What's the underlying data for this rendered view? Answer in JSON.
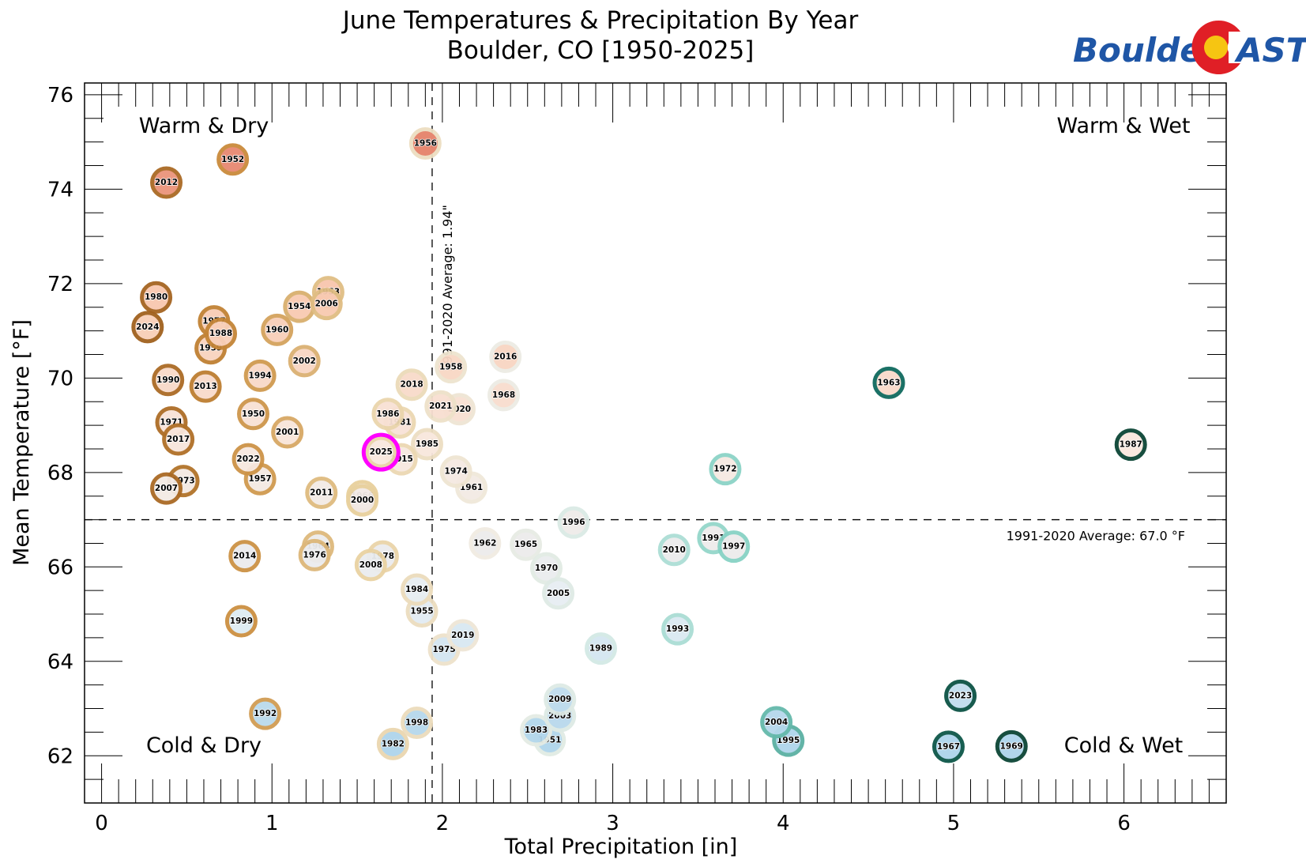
{
  "logo": {
    "left_text": "Boulder",
    "right_text": "AST",
    "colors": {
      "blue": "#1f56a6",
      "red": "#e01f26",
      "yellow": "#f6c512"
    }
  },
  "chart_data": {
    "type": "scatter",
    "title": "June Temperatures & Precipitation By Year",
    "subtitle": "Boulder, CO [1950-2025]",
    "xlabel": "Total Precipitation [in]",
    "ylabel": "Mean Temperature [°F]",
    "xlim": [
      -0.1,
      6.6
    ],
    "ylim": [
      61.0,
      76.25
    ],
    "x_ticks": [
      0,
      1,
      2,
      3,
      4,
      5,
      6
    ],
    "x_tick_labels": [
      "0",
      "1",
      "2",
      "3",
      "4",
      "5",
      "6"
    ],
    "x_minor_step": 0.1,
    "y_ticks": [
      62,
      64,
      66,
      68,
      70,
      72,
      74,
      76
    ],
    "y_tick_labels": [
      "62",
      "64",
      "66",
      "68",
      "70",
      "72",
      "74",
      "76"
    ],
    "y_minor_step": 0.5,
    "grid": false,
    "reference_lines": {
      "precip_average": {
        "value": 1.94,
        "label": "1991-2020 Average: 1.94\""
      },
      "temp_average": {
        "value": 67.0,
        "label": "1991-2020 Average: 67.0 °F"
      }
    },
    "quadrant_labels": {
      "top_left": "Warm & Dry",
      "top_right": "Warm & Wet",
      "bottom_left": "Cold & Dry",
      "bottom_right": "Cold & Wet"
    },
    "highlight": {
      "year": "2025",
      "color": "#ff00ff"
    },
    "color_scales": {
      "ring_by_precip": [
        "#8b4a0e",
        "#c98a3a",
        "#e8cf9c",
        "#f1ece4",
        "#cfe9e5",
        "#7fcfc1",
        "#0f6e63",
        "#0b4535"
      ],
      "fill_by_temp": [
        "#a9d2ea",
        "#e6eef4",
        "#f8e8df",
        "#f8c8ae",
        "#e58169"
      ]
    },
    "points": [
      {
        "year": "1950",
        "precip": 0.89,
        "temp": 69.24
      },
      {
        "year": "1951",
        "precip": 2.63,
        "temp": 62.33
      },
      {
        "year": "1952",
        "precip": 0.77,
        "temp": 74.63
      },
      {
        "year": "1953",
        "precip": 1.33,
        "temp": 71.82
      },
      {
        "year": "1954",
        "precip": 1.16,
        "temp": 71.51
      },
      {
        "year": "1955",
        "precip": 1.88,
        "temp": 65.06
      },
      {
        "year": "1956",
        "precip": 1.9,
        "temp": 74.97
      },
      {
        "year": "1957",
        "precip": 0.93,
        "temp": 67.86
      },
      {
        "year": "1958",
        "precip": 2.05,
        "temp": 70.23
      },
      {
        "year": "1959",
        "precip": 0.64,
        "temp": 70.63
      },
      {
        "year": "1960",
        "precip": 1.03,
        "temp": 71.02
      },
      {
        "year": "1961",
        "precip": 2.17,
        "temp": 67.68
      },
      {
        "year": "1962",
        "precip": 2.25,
        "temp": 66.5
      },
      {
        "year": "1963",
        "precip": 4.62,
        "temp": 69.9
      },
      {
        "year": "1964",
        "precip": 1.27,
        "temp": 66.43
      },
      {
        "year": "1965",
        "precip": 2.49,
        "temp": 66.47
      },
      {
        "year": "1966",
        "precip": 1.53,
        "temp": 67.5
      },
      {
        "year": "1967",
        "precip": 4.97,
        "temp": 62.19
      },
      {
        "year": "1968",
        "precip": 2.36,
        "temp": 69.64
      },
      {
        "year": "1969",
        "precip": 5.34,
        "temp": 62.2
      },
      {
        "year": "1970",
        "precip": 2.61,
        "temp": 65.97
      },
      {
        "year": "1971",
        "precip": 0.41,
        "temp": 69.06
      },
      {
        "year": "1972",
        "precip": 3.66,
        "temp": 68.07
      },
      {
        "year": "1973",
        "precip": 0.48,
        "temp": 67.82
      },
      {
        "year": "1974",
        "precip": 2.08,
        "temp": 68.02
      },
      {
        "year": "1975",
        "precip": 2.01,
        "temp": 64.25
      },
      {
        "year": "1976",
        "precip": 1.25,
        "temp": 66.25
      },
      {
        "year": "1977",
        "precip": 0.66,
        "temp": 71.2
      },
      {
        "year": "1978",
        "precip": 1.65,
        "temp": 66.22
      },
      {
        "year": "1980",
        "precip": 0.32,
        "temp": 71.71
      },
      {
        "year": "1981",
        "precip": 1.75,
        "temp": 69.06
      },
      {
        "year": "1982",
        "precip": 1.71,
        "temp": 62.25
      },
      {
        "year": "1983",
        "precip": 2.55,
        "temp": 62.54
      },
      {
        "year": "1984",
        "precip": 1.85,
        "temp": 65.52
      },
      {
        "year": "1985",
        "precip": 1.91,
        "temp": 68.6
      },
      {
        "year": "1986",
        "precip": 1.68,
        "temp": 69.24
      },
      {
        "year": "1987",
        "precip": 6.04,
        "temp": 68.59
      },
      {
        "year": "1988",
        "precip": 0.7,
        "temp": 70.94
      },
      {
        "year": "1989",
        "precip": 2.93,
        "temp": 64.27
      },
      {
        "year": "1990",
        "precip": 0.39,
        "temp": 69.96
      },
      {
        "year": "1991",
        "precip": 3.59,
        "temp": 66.61
      },
      {
        "year": "1992",
        "precip": 0.96,
        "temp": 62.89
      },
      {
        "year": "1993",
        "precip": 3.38,
        "temp": 64.68
      },
      {
        "year": "1994",
        "precip": 0.93,
        "temp": 70.05
      },
      {
        "year": "1995",
        "precip": 4.03,
        "temp": 62.32
      },
      {
        "year": "1996",
        "precip": 2.77,
        "temp": 66.94
      },
      {
        "year": "1997",
        "precip": 3.71,
        "temp": 66.43
      },
      {
        "year": "1998",
        "precip": 1.85,
        "temp": 62.7
      },
      {
        "year": "1999",
        "precip": 0.82,
        "temp": 64.85
      },
      {
        "year": "2000",
        "precip": 1.53,
        "temp": 67.41
      },
      {
        "year": "2001",
        "precip": 1.09,
        "temp": 68.85
      },
      {
        "year": "2002",
        "precip": 1.19,
        "temp": 70.36
      },
      {
        "year": "2003",
        "precip": 2.69,
        "temp": 62.84
      },
      {
        "year": "2004",
        "precip": 3.96,
        "temp": 62.71
      },
      {
        "year": "2005",
        "precip": 2.68,
        "temp": 65.44
      },
      {
        "year": "2006",
        "precip": 1.32,
        "temp": 71.57
      },
      {
        "year": "2007",
        "precip": 0.38,
        "temp": 67.66
      },
      {
        "year": "2008",
        "precip": 1.58,
        "temp": 66.04
      },
      {
        "year": "2009",
        "precip": 2.69,
        "temp": 63.19
      },
      {
        "year": "2010",
        "precip": 3.36,
        "temp": 66.36
      },
      {
        "year": "2011",
        "precip": 1.29,
        "temp": 67.57
      },
      {
        "year": "2012",
        "precip": 0.38,
        "temp": 74.14
      },
      {
        "year": "2013",
        "precip": 0.61,
        "temp": 69.82
      },
      {
        "year": "2014",
        "precip": 0.84,
        "temp": 66.23
      },
      {
        "year": "2015",
        "precip": 1.76,
        "temp": 68.28
      },
      {
        "year": "2016",
        "precip": 2.37,
        "temp": 70.45
      },
      {
        "year": "2017",
        "precip": 0.45,
        "temp": 68.7
      },
      {
        "year": "2018",
        "precip": 1.82,
        "temp": 69.86
      },
      {
        "year": "2019",
        "precip": 2.12,
        "temp": 64.55
      },
      {
        "year": "2020",
        "precip": 2.1,
        "temp": 69.34
      },
      {
        "year": "2021",
        "precip": 1.99,
        "temp": 69.4
      },
      {
        "year": "2022",
        "precip": 0.86,
        "temp": 68.28
      },
      {
        "year": "2023",
        "precip": 5.04,
        "temp": 63.27
      },
      {
        "year": "2024",
        "precip": 0.27,
        "temp": 71.08
      },
      {
        "year": "2025",
        "precip": 1.64,
        "temp": 68.43
      }
    ]
  }
}
